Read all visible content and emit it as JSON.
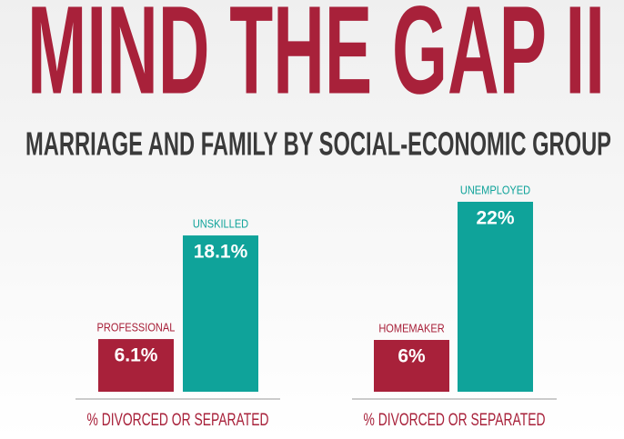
{
  "header": {
    "title": "MIND THE GAP II",
    "subtitle": "MARRIAGE AND FAMILY BY SOCIAL-ECONOMIC GROUP"
  },
  "chart_data": [
    {
      "type": "bar",
      "categories": [
        "PROFESSIONAL",
        "UNSKILLED"
      ],
      "values": [
        6.1,
        18.1
      ],
      "value_labels": [
        "6.1%",
        "18.1%"
      ],
      "colors": [
        "#a8213a",
        "#0fa39a"
      ],
      "xlabel": "% DIVORCED OR SEPARATED"
    },
    {
      "type": "bar",
      "categories": [
        "HOMEMAKER",
        "UNEMPLOYED"
      ],
      "values": [
        6,
        22
      ],
      "value_labels": [
        "6%",
        "22%"
      ],
      "colors": [
        "#a8213a",
        "#0fa39a"
      ],
      "xlabel": "% DIVORCED OR SEPARATED"
    }
  ]
}
